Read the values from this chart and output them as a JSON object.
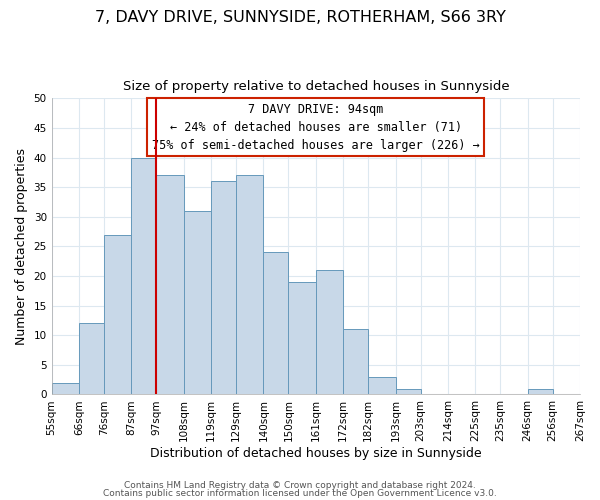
{
  "title": "7, DAVY DRIVE, SUNNYSIDE, ROTHERHAM, S66 3RY",
  "subtitle": "Size of property relative to detached houses in Sunnyside",
  "xlabel": "Distribution of detached houses by size in Sunnyside",
  "ylabel": "Number of detached properties",
  "bins": [
    55,
    66,
    76,
    87,
    97,
    108,
    119,
    129,
    140,
    150,
    161,
    172,
    182,
    193,
    203,
    214,
    225,
    235,
    246,
    256,
    267
  ],
  "bin_labels": [
    "55sqm",
    "66sqm",
    "76sqm",
    "87sqm",
    "97sqm",
    "108sqm",
    "119sqm",
    "129sqm",
    "140sqm",
    "150sqm",
    "161sqm",
    "172sqm",
    "182sqm",
    "193sqm",
    "203sqm",
    "214sqm",
    "225sqm",
    "235sqm",
    "246sqm",
    "256sqm",
    "267sqm"
  ],
  "counts": [
    2,
    12,
    27,
    40,
    37,
    31,
    36,
    37,
    24,
    19,
    21,
    11,
    3,
    1,
    0,
    0,
    0,
    0,
    1,
    0
  ],
  "bar_color": "#c8d8e8",
  "bar_edge_color": "#6699bb",
  "grid_color": "#dde8f0",
  "vline_x": 97,
  "vline_color": "#cc0000",
  "ylim": [
    0,
    50
  ],
  "yticks": [
    0,
    5,
    10,
    15,
    20,
    25,
    30,
    35,
    40,
    45,
    50
  ],
  "annotation_title": "7 DAVY DRIVE: 94sqm",
  "annotation_line1": "← 24% of detached houses are smaller (71)",
  "annotation_line2": "75% of semi-detached houses are larger (226) →",
  "annotation_box_color": "#ffffff",
  "annotation_box_edge": "#cc2200",
  "footer1": "Contains HM Land Registry data © Crown copyright and database right 2024.",
  "footer2": "Contains public sector information licensed under the Open Government Licence v3.0.",
  "title_fontsize": 11.5,
  "subtitle_fontsize": 9.5,
  "axis_label_fontsize": 9,
  "tick_fontsize": 7.5,
  "annotation_fontsize": 8.5,
  "footer_fontsize": 6.5
}
